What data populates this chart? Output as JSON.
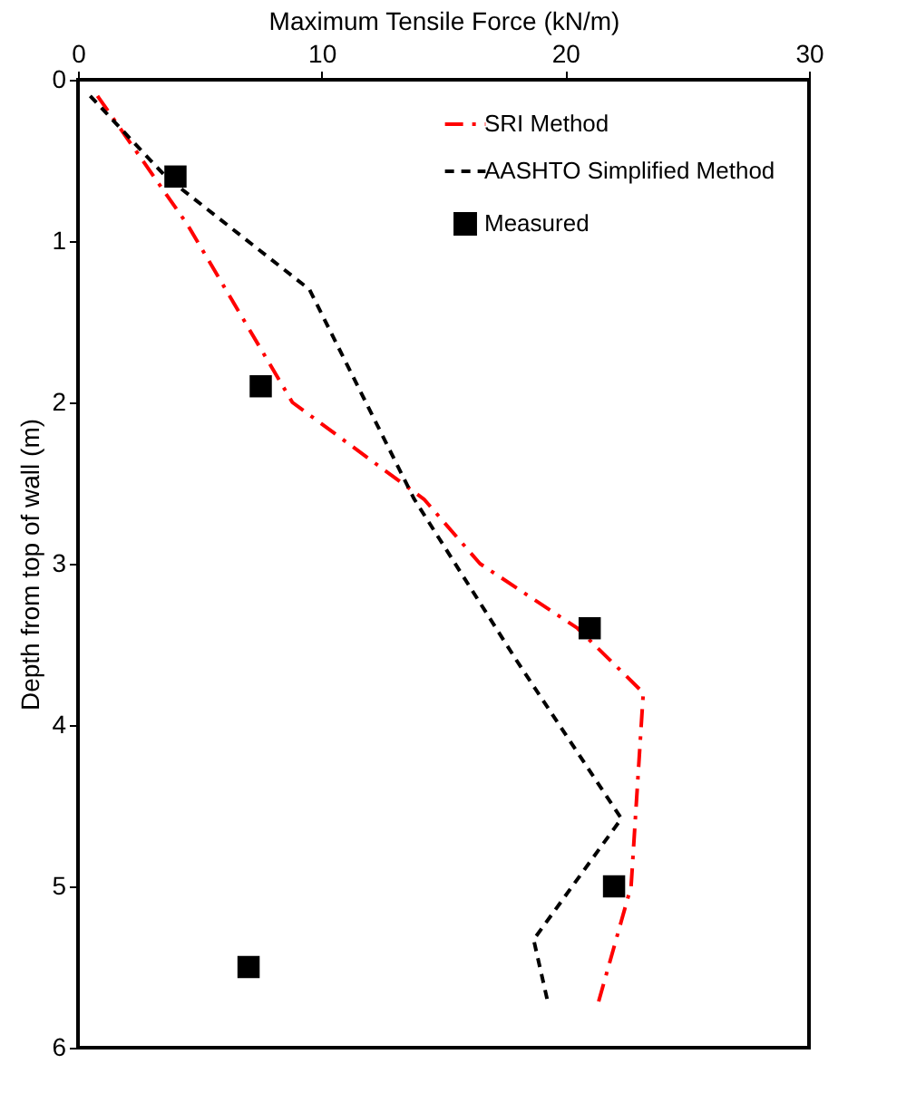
{
  "chart_data": {
    "type": "line",
    "xlabel": "Maximum Tensile Force (kN/m)",
    "ylabel": "Depth from top of wall (m)",
    "xlim": [
      0,
      30
    ],
    "xticks": [
      0,
      10,
      20,
      30
    ],
    "ylim": [
      6,
      0
    ],
    "yticks": [
      0,
      1,
      2,
      3,
      4,
      5,
      6
    ],
    "grid": false,
    "legend": "top right",
    "series": [
      {
        "name": "SRI Method",
        "color": "#ff0000",
        "line_style": "dashdot",
        "marker": "none",
        "x": [
          0.8,
          4.5,
          8.8,
          14.2,
          16.5,
          20.5,
          23.2,
          22.7,
          21.3
        ],
        "values": [
          0.1,
          0.9,
          2,
          2.6,
          3,
          3.4,
          3.8,
          5,
          5.75
        ]
      },
      {
        "name": "AASHTO Simplified Method",
        "color": "#000000",
        "line_style": "dashed",
        "marker": "none",
        "x": [
          0.5,
          3.6,
          9.5,
          13.8,
          18,
          22.3,
          18.7,
          19.3
        ],
        "values": [
          0.1,
          0.6,
          1.3,
          2.6,
          3.6,
          4.58,
          5.33,
          5.73
        ]
      },
      {
        "name": "Measured",
        "type": "scatter",
        "color": "#000000",
        "marker": "square",
        "x": [
          4,
          7.5,
          21,
          22,
          7
        ],
        "values": [
          0.6,
          1.9,
          3.4,
          5,
          5.5
        ]
      }
    ]
  }
}
